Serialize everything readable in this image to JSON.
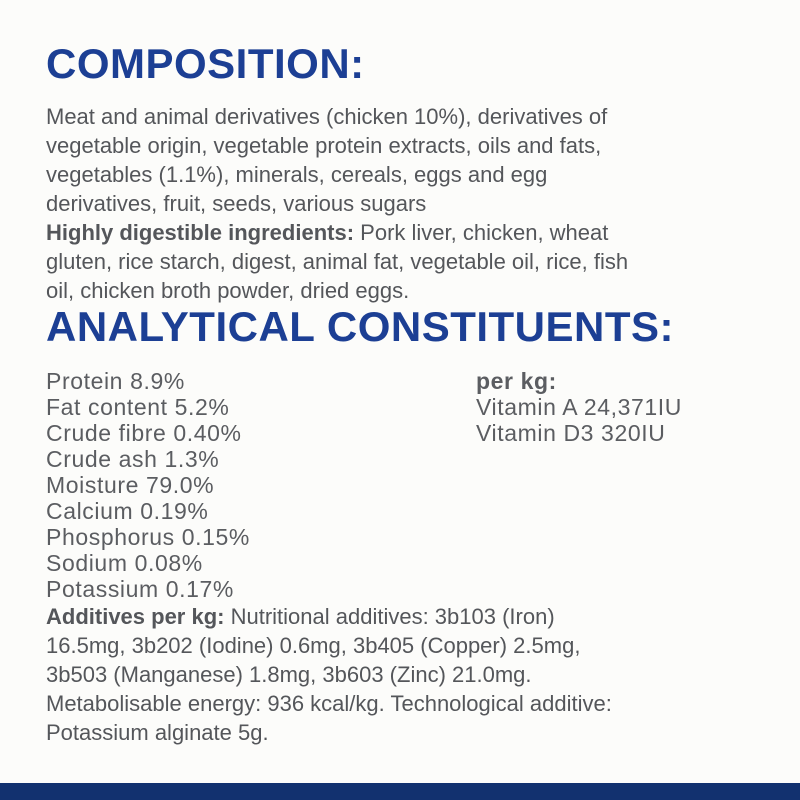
{
  "page": {
    "colors": {
      "navy": "#1c3f94",
      "bar": "#12316f",
      "text-gray": "#54565a",
      "list-gray": "#5b5d61"
    }
  },
  "composition": {
    "heading": "COMPOSITION:",
    "body": "Meat and animal derivatives (chicken 10%), derivatives of\nvegetable origin, vegetable protein extracts, oils and fats,\nvegetables (1.1%), minerals, cereals, eggs and egg\nderivatives, fruit, seeds, various sugars",
    "digestible_lead": "Highly digestible ingredients:",
    "digestible_body": " Pork liver, chicken, wheat\ngluten, rice starch, digest, animal fat, vegetable oil, rice, fish\noil, chicken broth powder, dried eggs."
  },
  "analytical": {
    "heading": "ANALYTICAL CONSTITUENTS:",
    "items": [
      "Protein 8.9%",
      "Fat content 5.2%",
      "Crude fibre 0.40%",
      "Crude ash 1.3%",
      "Moisture 79.0%",
      "Calcium 0.19%",
      "Phosphorus 0.15%",
      "Sodium 0.08%",
      "Potassium 0.17%"
    ],
    "per_kg": {
      "heading": "per kg:",
      "items": [
        "Vitamin A 24,371IU",
        "Vitamin D3 320IU"
      ]
    }
  },
  "additives": {
    "lead": "Additives per kg:",
    "body": " Nutritional additives: 3b103 (Iron)\n16.5mg, 3b202 (Iodine) 0.6mg, 3b405 (Copper) 2.5mg,\n3b503 (Manganese) 1.8mg, 3b603 (Zinc) 21.0mg.\nMetabolisable energy: 936 kcal/kg. Technological additive:\nPotassium alginate 5g."
  }
}
